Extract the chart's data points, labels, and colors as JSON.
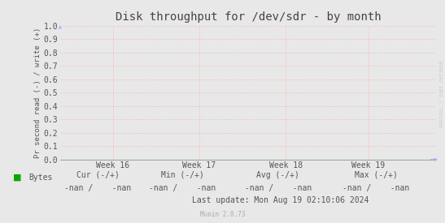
{
  "title": "Disk throughput for /dev/sdr - by month",
  "ylabel": "Pr second read (-) / write (+)",
  "background_color": "#e8e8e8",
  "plot_bg_color": "#e8e8e8",
  "grid_color": "#ffaaaa",
  "ylim": [
    0.0,
    1.0
  ],
  "yticks": [
    0.0,
    0.1,
    0.2,
    0.3,
    0.4,
    0.5,
    0.6,
    0.7,
    0.8,
    0.9,
    1.0
  ],
  "xtick_labels": [
    "Week 16",
    "Week 17",
    "Week 18",
    "Week 19"
  ],
  "line_color": "#00aa00",
  "watermark": "RRDTOOL / TOBI OETIKER",
  "legend_label": "Bytes",
  "legend_color": "#00aa00",
  "footer_cur": "Cur (-/+)",
  "footer_min": "Min (-/+)",
  "footer_avg": "Avg (-/+)",
  "footer_max": "Max (-/+)",
  "footer_cur_val": "-nan /    -nan",
  "footer_min_val": "-nan /    -nan",
  "footer_avg_val": "-nan /    -nan",
  "footer_max_val": "-nan /    -nan",
  "last_update": "Last update: Mon Aug 19 02:10:06 2024",
  "munin_version": "Munin 2.0.73",
  "title_fontsize": 10,
  "tick_fontsize": 7,
  "footer_fontsize": 7,
  "watermark_color": "#cccccc",
  "text_color": "#555555",
  "arrow_color": "#aaaaff"
}
